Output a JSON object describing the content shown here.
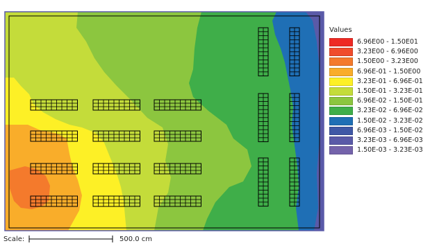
{
  "chart_data": {
    "type": "heatmap",
    "title": "",
    "legend": {
      "title": "Values",
      "placement": "right",
      "entries": [
        {
          "label": "6.96E00 - 1.50E01",
          "color": "#ee2a24"
        },
        {
          "label": "3.23E00 - 6.96E00",
          "color": "#f04c2c"
        },
        {
          "label": "1.50E00 - 3.23E00",
          "color": "#f47a2c"
        },
        {
          "label": "6.96E-01 - 1.50E00",
          "color": "#f9ad2a"
        },
        {
          "label": "3.23E-01 - 6.96E-01",
          "color": "#fdf026"
        },
        {
          "label": "1.50E-01 - 3.23E-01",
          "color": "#c4dc3a"
        },
        {
          "label": "6.96E-02 - 1.50E-01",
          "color": "#8cc63f"
        },
        {
          "label": "3.23E-02 - 6.96E-02",
          "color": "#3fae49"
        },
        {
          "label": "1.50E-02 - 3.23E-02",
          "color": "#1f6fb5"
        },
        {
          "label": "6.96E-03 - 1.50E-02",
          "color": "#3f58a6"
        },
        {
          "label": "3.23E-03 - 6.96E-03",
          "color": "#5a5aa8"
        },
        {
          "label": "1.50E-03 - 3.23E-03",
          "color": "#7463ab"
        }
      ]
    },
    "scale": {
      "label": "Scale:",
      "value": "500.0 cm"
    },
    "grid": false
  }
}
